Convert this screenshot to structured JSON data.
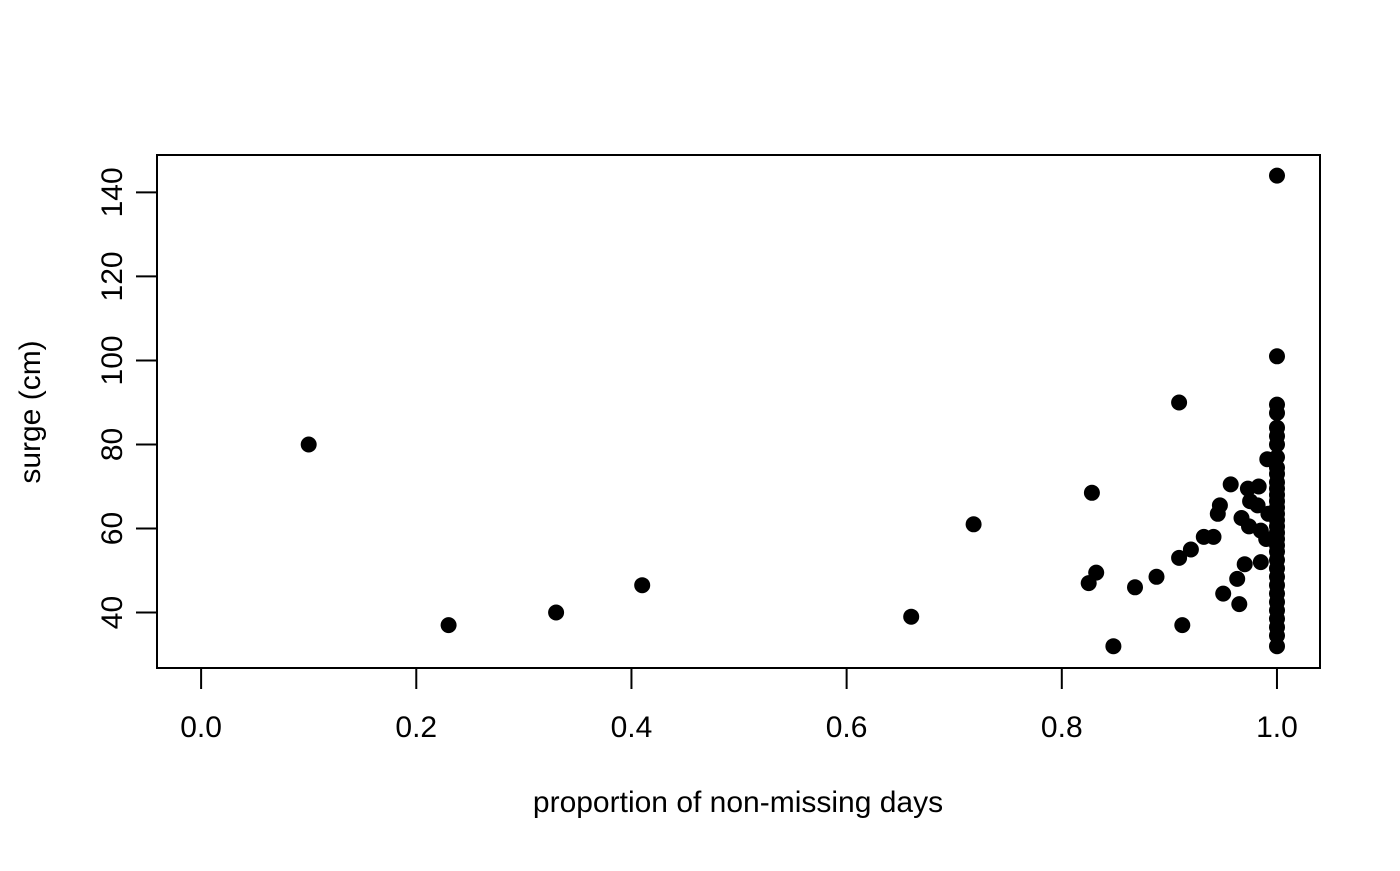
{
  "chart_data": {
    "type": "scatter",
    "title": "",
    "xlabel": "proportion of non-missing days",
    "ylabel": "surge (cm)",
    "x_ticks": [
      0.0,
      0.2,
      0.4,
      0.6,
      0.8,
      1.0
    ],
    "x_tick_labels": [
      "0.0",
      "0.2",
      "0.4",
      "0.6",
      "0.8",
      "1.0"
    ],
    "y_ticks": [
      40,
      60,
      80,
      100,
      120,
      140
    ],
    "y_tick_labels": [
      "40",
      "60",
      "80",
      "100",
      "120",
      "140"
    ],
    "xlim": [
      -0.041,
      1.04
    ],
    "ylim": [
      26.8,
      148.9
    ],
    "grid": false,
    "legend_position": "none",
    "point_color": "#000000",
    "frame_color": "#000000",
    "background_color": "#ffffff",
    "point_radius_px": 8,
    "points": [
      [
        0.1,
        80
      ],
      [
        0.23,
        37
      ],
      [
        0.33,
        40
      ],
      [
        0.41,
        46.5
      ],
      [
        0.66,
        39
      ],
      [
        0.718,
        61
      ],
      [
        0.825,
        47
      ],
      [
        0.828,
        68.5
      ],
      [
        0.832,
        49.5
      ],
      [
        0.848,
        32
      ],
      [
        0.868,
        46
      ],
      [
        0.888,
        48.5
      ],
      [
        0.909,
        90
      ],
      [
        0.909,
        53
      ],
      [
        0.912,
        37
      ],
      [
        0.92,
        55
      ],
      [
        0.932,
        58
      ],
      [
        0.941,
        58
      ],
      [
        0.945,
        63.5
      ],
      [
        0.947,
        65.5
      ],
      [
        0.95,
        44.5
      ],
      [
        0.957,
        70.5
      ],
      [
        0.963,
        48
      ],
      [
        0.965,
        42
      ],
      [
        0.967,
        62.5
      ],
      [
        0.97,
        51.5
      ],
      [
        0.973,
        69.5
      ],
      [
        0.974,
        60.5
      ],
      [
        0.975,
        66.5
      ],
      [
        0.982,
        65.5
      ],
      [
        0.983,
        70
      ],
      [
        0.985,
        59.5
      ],
      [
        0.985,
        52
      ],
      [
        0.991,
        76.5
      ],
      [
        0.99,
        57.5
      ],
      [
        0.992,
        63.5
      ],
      [
        1.0,
        144
      ],
      [
        1.0,
        101
      ],
      [
        1.0,
        89.5
      ],
      [
        1.0,
        87.5
      ],
      [
        1.0,
        84
      ],
      [
        1.0,
        82
      ],
      [
        1.0,
        80
      ],
      [
        1.0,
        77
      ],
      [
        1.0,
        74.5
      ],
      [
        1.0,
        73
      ],
      [
        1.0,
        71
      ],
      [
        1.0,
        69.5
      ],
      [
        1.0,
        68
      ],
      [
        1.0,
        66.5
      ],
      [
        1.0,
        65
      ],
      [
        1.0,
        63.5
      ],
      [
        1.0,
        62
      ],
      [
        1.0,
        60.5
      ],
      [
        1.0,
        59
      ],
      [
        1.0,
        57.5
      ],
      [
        1.0,
        56
      ],
      [
        1.0,
        54.5
      ],
      [
        1.0,
        52.5
      ],
      [
        1.0,
        50.5
      ],
      [
        1.0,
        48.5
      ],
      [
        1.0,
        46.5
      ],
      [
        1.0,
        44.5
      ],
      [
        1.0,
        42.5
      ],
      [
        1.0,
        40.5
      ],
      [
        1.0,
        38.5
      ],
      [
        1.0,
        36.5
      ],
      [
        1.0,
        34.5
      ],
      [
        1.0,
        32
      ]
    ]
  }
}
